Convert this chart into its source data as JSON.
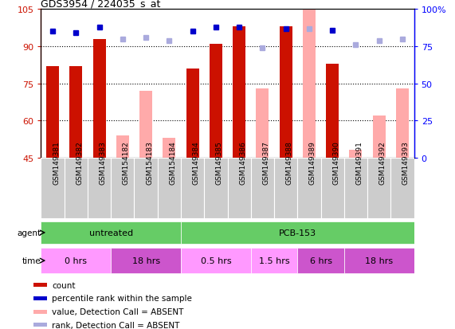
{
  "title": "GDS3954 / 224035_s_at",
  "samples": [
    "GSM149381",
    "GSM149382",
    "GSM149383",
    "GSM154182",
    "GSM154183",
    "GSM154184",
    "GSM149384",
    "GSM149385",
    "GSM149386",
    "GSM149387",
    "GSM149388",
    "GSM149389",
    "GSM149390",
    "GSM149391",
    "GSM149392",
    "GSM149393"
  ],
  "count_values": [
    82,
    82,
    93,
    null,
    null,
    null,
    81,
    91,
    98,
    null,
    98,
    null,
    83,
    null,
    null,
    null
  ],
  "absent_values": [
    null,
    null,
    null,
    54,
    72,
    53,
    null,
    null,
    null,
    73,
    null,
    105,
    null,
    48,
    62,
    73
  ],
  "rank_values": [
    85,
    84,
    88,
    null,
    null,
    null,
    85,
    88,
    88,
    null,
    87,
    null,
    86,
    null,
    null,
    null
  ],
  "absent_rank_values": [
    null,
    null,
    null,
    80,
    81,
    79,
    null,
    null,
    null,
    74,
    null,
    87,
    null,
    76,
    79,
    80
  ],
  "ylim_left": [
    45,
    105
  ],
  "ylim_right": [
    0,
    100
  ],
  "yticks_left": [
    45,
    60,
    75,
    90,
    105
  ],
  "yticks_right": [
    0,
    25,
    50,
    75,
    100
  ],
  "agent_groups": [
    {
      "label": "untreated",
      "start": 0,
      "end": 6,
      "color": "#66cc66"
    },
    {
      "label": "PCB-153",
      "start": 6,
      "end": 16,
      "color": "#66cc66"
    }
  ],
  "time_groups": [
    {
      "label": "0 hrs",
      "start": 0,
      "end": 3,
      "color": "#ff99ff"
    },
    {
      "label": "18 hrs",
      "start": 3,
      "end": 6,
      "color": "#cc55cc"
    },
    {
      "label": "0.5 hrs",
      "start": 6,
      "end": 9,
      "color": "#ff99ff"
    },
    {
      "label": "1.5 hrs",
      "start": 9,
      "end": 11,
      "color": "#ff99ff"
    },
    {
      "label": "6 hrs",
      "start": 11,
      "end": 13,
      "color": "#cc55cc"
    },
    {
      "label": "18 hrs",
      "start": 13,
      "end": 16,
      "color": "#cc55cc"
    }
  ],
  "red_color": "#cc1100",
  "pink_color": "#ffaaaa",
  "blue_color": "#0000cc",
  "lightblue_color": "#aaaadd",
  "sample_box_color": "#cccccc",
  "legend_items": [
    {
      "color": "#cc1100",
      "label": "count"
    },
    {
      "color": "#0000cc",
      "label": "percentile rank within the sample"
    },
    {
      "color": "#ffaaaa",
      "label": "value, Detection Call = ABSENT"
    },
    {
      "color": "#aaaadd",
      "label": "rank, Detection Call = ABSENT"
    }
  ]
}
